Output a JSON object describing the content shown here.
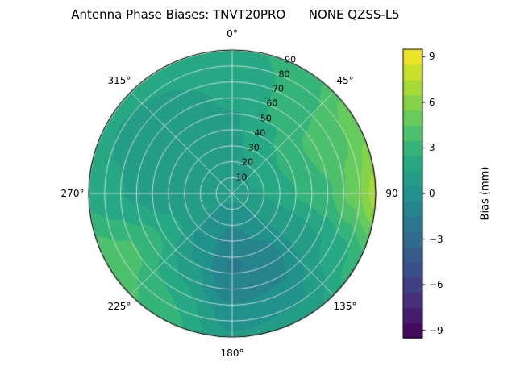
{
  "chart_data": {
    "type": "heatmap",
    "subtype": "polar_contourf",
    "title": "Antenna Phase Biases: TNVT20PRO      NONE QZSS-L5",
    "colormap": {
      "name": "viridis",
      "stops": [
        "#440154",
        "#472d7b",
        "#3b528b",
        "#2c728e",
        "#21918c",
        "#27ad81",
        "#5ec962",
        "#aadc32",
        "#fde725"
      ]
    },
    "colorbar": {
      "label": "Bias (mm)",
      "vmin": -9.5,
      "vmax": 9.5,
      "level_step": 1.0,
      "ticks": [
        {
          "value": 9,
          "label": "9"
        },
        {
          "value": 6,
          "label": "6"
        },
        {
          "value": 3,
          "label": "3"
        },
        {
          "value": 0,
          "label": "0"
        },
        {
          "value": -3,
          "label": "−3"
        },
        {
          "value": -6,
          "label": "−6"
        },
        {
          "value": -9,
          "label": "−9"
        }
      ]
    },
    "angle_ticks": [
      {
        "deg": 0,
        "label": "0°"
      },
      {
        "deg": 45,
        "label": "45°"
      },
      {
        "deg": 90,
        "label": "90"
      },
      {
        "deg": 135,
        "label": "135°"
      },
      {
        "deg": 180,
        "label": "180°"
      },
      {
        "deg": 225,
        "label": "225°"
      },
      {
        "deg": 270,
        "label": "270°"
      },
      {
        "deg": 315,
        "label": "315°"
      }
    ],
    "radial_ticks": [
      10,
      20,
      30,
      40,
      50,
      60,
      70,
      80,
      90
    ],
    "radial_max": 90,
    "radial_label_angle_deg": 22.5,
    "grid": {
      "azimuth_deg": [
        0,
        30,
        60,
        90,
        120,
        150,
        180,
        210,
        240,
        270,
        300,
        330
      ],
      "radius_deg": [
        0,
        15,
        30,
        45,
        60,
        75,
        90
      ],
      "values_mm": [
        [
          0.8,
          0.8,
          0.8,
          0.8,
          0.8,
          0.8,
          0.8,
          0.8,
          0.8,
          0.8,
          0.8,
          0.8
        ],
        [
          1.0,
          1.3,
          1.6,
          1.4,
          0.8,
          0.2,
          -0.2,
          0.2,
          0.6,
          0.6,
          0.8,
          0.9
        ],
        [
          1.2,
          1.9,
          2.4,
          2.0,
          0.8,
          -0.4,
          -1.0,
          -0.2,
          1.0,
          0.7,
          0.8,
          1.0
        ],
        [
          1.4,
          2.4,
          3.2,
          2.7,
          1.0,
          -1.0,
          -1.6,
          0.4,
          2.0,
          0.9,
          0.8,
          1.1
        ],
        [
          1.6,
          2.7,
          3.8,
          3.4,
          1.4,
          -0.6,
          -1.2,
          1.4,
          3.0,
          1.3,
          1.0,
          1.3
        ],
        [
          1.8,
          2.7,
          4.3,
          4.8,
          2.0,
          0.3,
          0.0,
          2.5,
          3.8,
          1.7,
          1.3,
          1.5
        ],
        [
          2.0,
          3.0,
          5.2,
          6.9,
          3.0,
          1.0,
          0.6,
          3.1,
          4.3,
          2.2,
          1.7,
          1.9
        ]
      ]
    }
  }
}
